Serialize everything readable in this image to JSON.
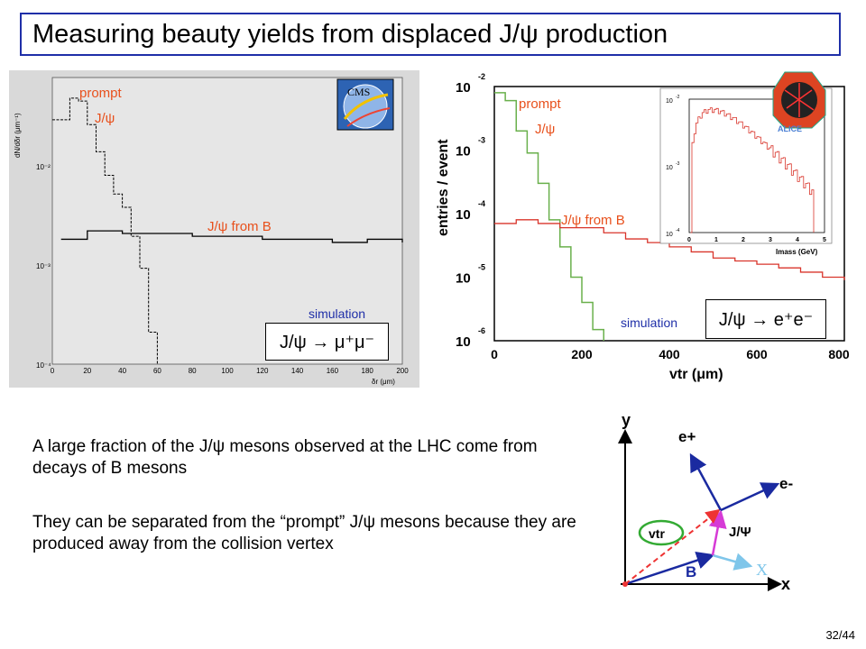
{
  "title": "Measuring beauty yields from displaced J/ψ production",
  "left_plot": {
    "ylabel": "dN/dδr (μm⁻¹)",
    "xlabel": "δr (μm)",
    "yticks": [
      "10⁻²",
      "10⁻³",
      "10⁻⁴"
    ],
    "xticks": [
      "0",
      "20",
      "40",
      "60",
      "80",
      "100",
      "120",
      "140",
      "160",
      "180",
      "200"
    ],
    "label_prompt_1": "prompt",
    "label_prompt_2": "J/ψ",
    "label_fromB": "J/ψ from B",
    "label_simulation": "simulation",
    "decay": "J/ψ → μ⁺μ⁻",
    "logo": "CMS"
  },
  "right_plot": {
    "ylabel": "entries / event",
    "xlabel": "vtr (μm)",
    "yticks": [
      "10",
      "10",
      "10",
      "10",
      "10"
    ],
    "yexps": [
      "-2",
      "-3",
      "-4",
      "-5",
      "-6"
    ],
    "xticks": [
      "0",
      "200",
      "400",
      "600",
      "800"
    ],
    "label_prompt_1": "prompt",
    "label_prompt_2": "J/ψ",
    "label_fromB": "J/ψ from B",
    "label_simulation": "simulation",
    "decay": "J/ψ → e⁺e⁻",
    "logo": "ALICE",
    "inset": {
      "xlabel": "Imass (GeV)",
      "yticks": [
        "10",
        "10",
        "10"
      ],
      "yexps": [
        "-2",
        "-3",
        "-4"
      ],
      "xticks": [
        "0",
        "1",
        "2",
        "3",
        "4",
        "5"
      ]
    }
  },
  "paragraph_1": "A large fraction of the J/ψ mesons observed at the LHC come from decays of B mesons",
  "paragraph_2": "They can be separated from the “prompt” J/ψ mesons because they are produced away from the collision vertex",
  "diagram": {
    "axis_y": "y",
    "axis_x": "x",
    "label_eplus": "e+",
    "label_eminus": "e-",
    "label_vtr": "vtr",
    "label_jpsi": "J/Ψ",
    "label_B": "B",
    "label_X": "X"
  },
  "page_number": "32/44",
  "chart_data": [
    {
      "type": "line",
      "xlabel": "δr (μm)",
      "ylabel": "dN/dδr (μm⁻¹)",
      "xlim": [
        0,
        200
      ],
      "ylim_log": [
        0.0001,
        0.05
      ],
      "series": [
        {
          "name": "prompt J/ψ",
          "x": [
            5,
            10,
            15,
            20,
            25,
            30,
            35,
            40,
            45,
            50,
            55,
            60
          ],
          "y": [
            0.02,
            0.032,
            0.03,
            0.018,
            0.01,
            0.006,
            0.004,
            0.003,
            0.0016,
            0.0008,
            0.0002,
            0.0001
          ]
        },
        {
          "name": "J/ψ from B",
          "x": [
            5,
            20,
            40,
            60,
            80,
            100,
            120,
            140,
            160,
            180,
            200
          ],
          "y": [
            0.0015,
            0.0018,
            0.0017,
            0.0017,
            0.0016,
            0.0016,
            0.0015,
            0.0015,
            0.0014,
            0.0015,
            0.0014
          ]
        }
      ]
    },
    {
      "type": "line",
      "xlabel": "vtr (μm)",
      "ylabel": "entries / event",
      "xlim": [
        0,
        800
      ],
      "ylim_log": [
        1e-06,
        0.01
      ],
      "series": [
        {
          "name": "prompt J/ψ",
          "x": [
            0,
            25,
            50,
            75,
            100,
            125,
            150,
            175,
            200,
            225,
            250
          ],
          "y": [
            0.008,
            0.006,
            0.002,
            0.0009,
            0.0003,
            8e-05,
            3e-05,
            1e-05,
            4e-06,
            1.5e-06,
            1e-06
          ]
        },
        {
          "name": "J/ψ from B",
          "x": [
            0,
            50,
            100,
            150,
            200,
            250,
            300,
            350,
            400,
            450,
            500,
            550,
            600,
            650,
            700,
            750,
            800
          ],
          "y": [
            7e-05,
            8e-05,
            7e-05,
            6e-05,
            6e-05,
            5e-05,
            4e-05,
            3.5e-05,
            3e-05,
            2.5e-05,
            2e-05,
            1.8e-05,
            1.6e-05,
            1.4e-05,
            1.2e-05,
            1e-05,
            9e-06
          ]
        }
      ]
    }
  ]
}
